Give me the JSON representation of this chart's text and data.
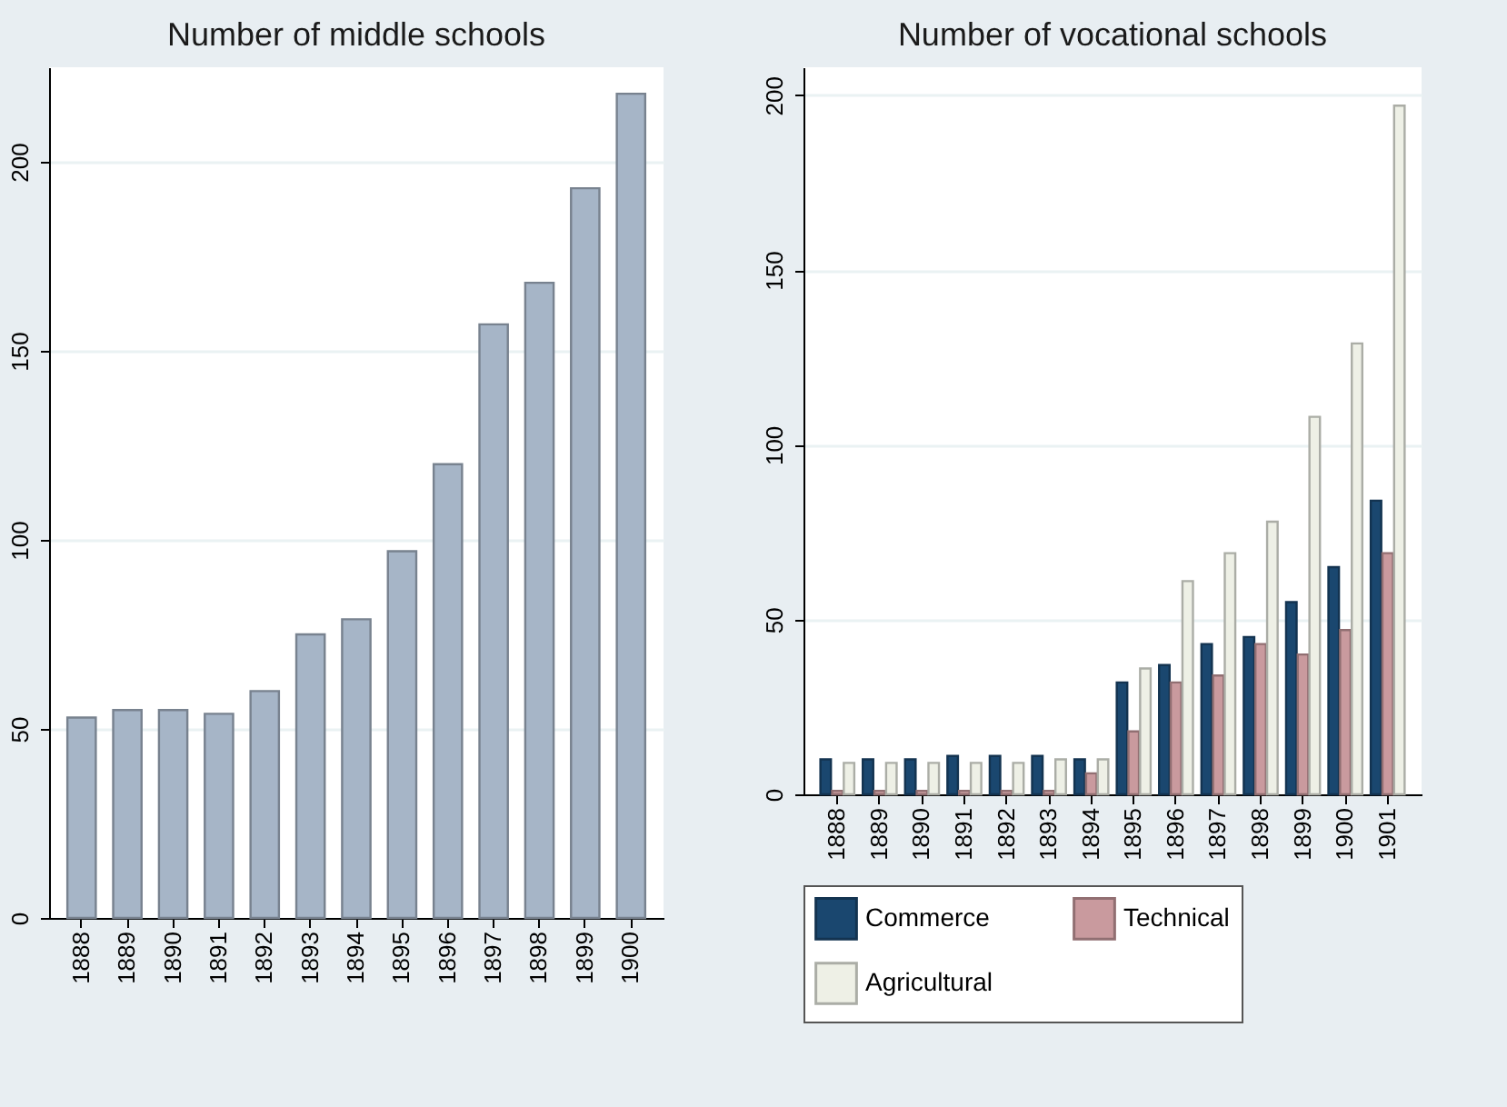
{
  "chart_data": [
    {
      "type": "bar",
      "title": "Number of middle schools",
      "categories": [
        "1888",
        "1889",
        "1890",
        "1891",
        "1892",
        "1893",
        "1894",
        "1895",
        "1896",
        "1897",
        "1898",
        "1899",
        "1900"
      ],
      "values": [
        53,
        55,
        55,
        54,
        60,
        75,
        79,
        97,
        120,
        157,
        168,
        193,
        218
      ],
      "color": "#a6b5c7",
      "ylim": [
        0,
        225
      ],
      "yticks": [
        0,
        50,
        100,
        150,
        200
      ],
      "grid": "y"
    },
    {
      "type": "bar",
      "title": "Number of vocational schools",
      "categories": [
        "1888",
        "1889",
        "1890",
        "1891",
        "1892",
        "1893",
        "1894",
        "1895",
        "1896",
        "1897",
        "1898",
        "1899",
        "1900",
        "1901"
      ],
      "series": [
        {
          "name": "Commerce",
          "color": "#1a476f",
          "values": [
            10,
            10,
            10,
            11,
            11,
            11,
            10,
            32,
            37,
            43,
            45,
            55,
            65,
            84
          ]
        },
        {
          "name": "Technical",
          "color": "#c99a9e",
          "values": [
            1,
            1,
            1,
            1,
            1,
            1,
            6,
            18,
            32,
            34,
            43,
            40,
            47,
            69
          ]
        },
        {
          "name": "Agricultural",
          "color": "#eef0e6",
          "values": [
            9,
            9,
            9,
            9,
            9,
            10,
            10,
            36,
            61,
            69,
            78,
            108,
            129,
            197
          ]
        }
      ],
      "ylim": [
        0,
        208
      ],
      "yticks": [
        0,
        50,
        100,
        150,
        200
      ],
      "grid": "y",
      "legend": "bottom"
    }
  ]
}
